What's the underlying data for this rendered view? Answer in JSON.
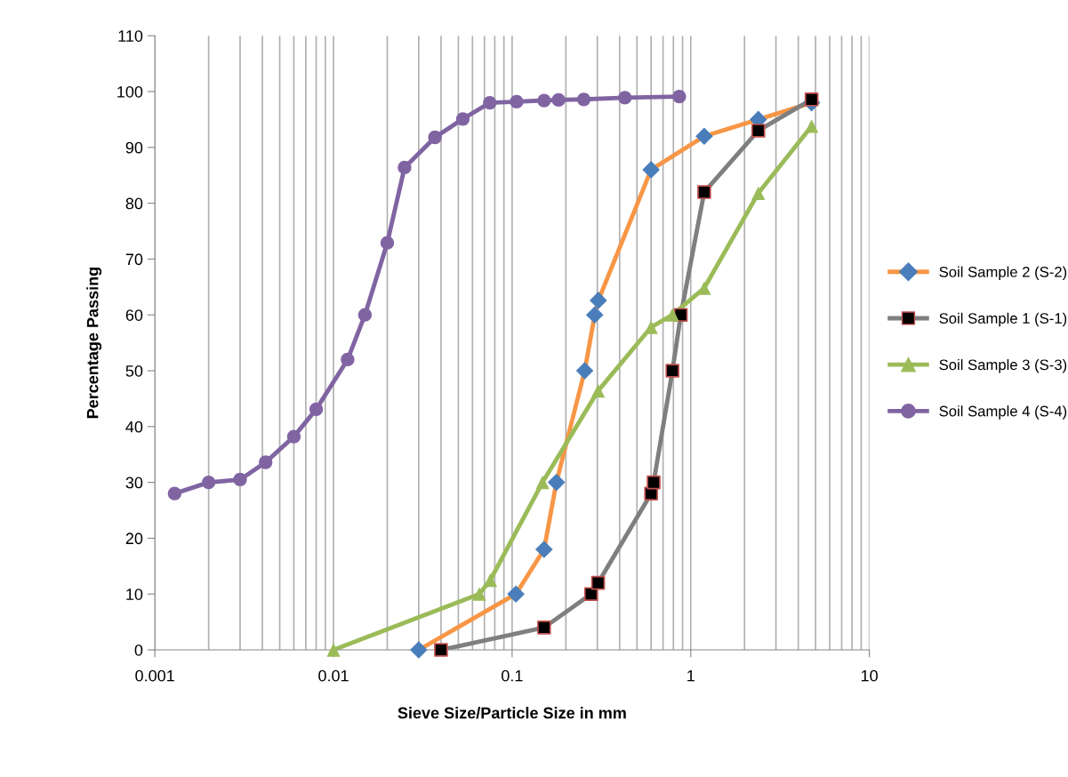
{
  "chart_data": {
    "type": "line",
    "xlabel": "Sieve Size/Particle Size in mm",
    "ylabel": "Percentage Passing",
    "log": "x",
    "xlim": [
      0.001,
      10
    ],
    "xticks": [
      {
        "value": 0.001,
        "label": "0.001"
      },
      {
        "value": 0.01,
        "label": "0.01"
      },
      {
        "value": 0.1,
        "label": "0.1"
      },
      1,
      10
    ],
    "ylim": [
      0,
      110
    ],
    "yticks": [
      0,
      10,
      20,
      30,
      40,
      50,
      60,
      70,
      80,
      90,
      100,
      110
    ],
    "grid": "x",
    "legend": "right",
    "series": [
      {
        "name": "Soil Sample 2 (S-2)",
        "color": "#f79646",
        "marker": "diamond",
        "x": [
          0.03,
          0.105,
          0.151,
          0.177,
          0.255,
          0.29,
          0.304,
          0.6,
          1.19,
          2.39,
          4.75
        ],
        "values": [
          0,
          10,
          18,
          30,
          50,
          60,
          62.6,
          86,
          92,
          95,
          98
        ],
        "colors": [
          "#4a7ebb",
          "#4a7ebb",
          "#4a7ebb",
          "#4a7ebb",
          "#4a7ebb",
          "#4a7ebb",
          "#4a7ebb",
          "#4a7ebb",
          "#4a7ebb",
          "#4a7ebb",
          "#4a7ebb"
        ]
      },
      {
        "name": "Soil Sample 1 (S-1)",
        "color": "#7f7f7f",
        "marker": "square",
        "x": [
          0.04,
          0.151,
          0.277,
          0.303,
          0.6,
          0.62,
          0.79,
          0.88,
          1.19,
          2.39,
          4.75
        ],
        "values": [
          0,
          4,
          10,
          12,
          28,
          30,
          50,
          60,
          82,
          93,
          98.6
        ],
        "colors": [
          "#000000",
          "#000000",
          "#000000",
          "#000000",
          "#000000",
          "#000000",
          "#000000",
          "#000000",
          "#000000",
          "#000000",
          "#000000"
        ]
      },
      {
        "name": "Soil Sample 3 (S-3)",
        "color": "#9bbb59",
        "marker": "triangle",
        "x": [
          0.01,
          0.0655,
          0.0755,
          0.148,
          0.303,
          0.6,
          0.79,
          1.19,
          2.39,
          4.75
        ],
        "values": [
          0,
          10,
          12.5,
          30,
          46.4,
          57.8,
          60,
          64.8,
          81.8,
          93.8
        ]
      },
      {
        "name": "Soil Sample 4 (S-4)",
        "color": "#8064a2",
        "marker": "circle",
        "x": [
          0.00129,
          0.002,
          0.003,
          0.00417,
          0.006,
          0.008,
          0.012,
          0.015,
          0.02,
          0.025,
          0.037,
          0.053,
          0.075,
          0.106,
          0.151,
          0.182,
          0.252,
          0.428,
          0.863
        ],
        "values": [
          28,
          30,
          30.5,
          33.6,
          38.2,
          43.1,
          52,
          60,
          72.9,
          86.4,
          91.8,
          95.1,
          98,
          98.2,
          98.4,
          98.5,
          98.6,
          98.9,
          99.1
        ]
      }
    ]
  }
}
